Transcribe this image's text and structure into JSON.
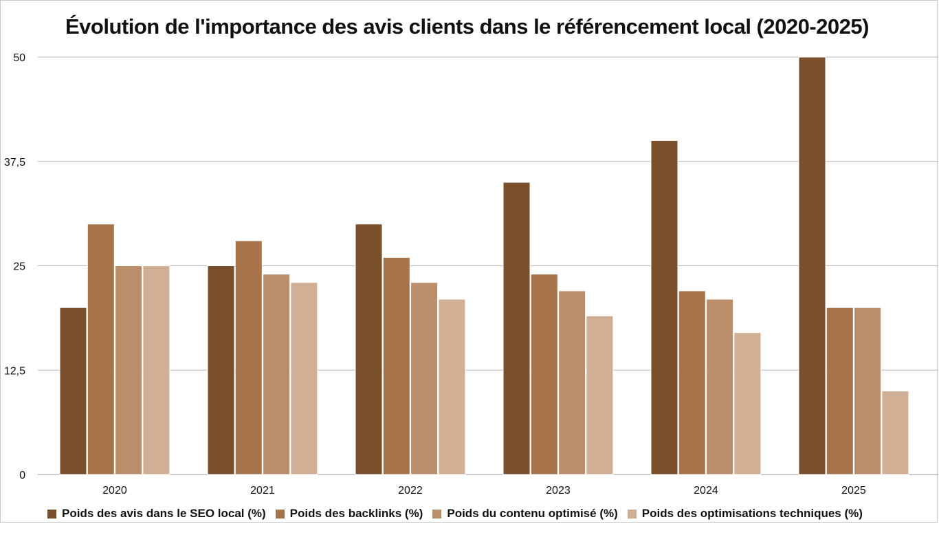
{
  "chart_data": {
    "type": "bar",
    "title": "Évolution de l'importance des avis clients dans le référencement local (2020-2025)",
    "xlabel": "",
    "ylabel": "",
    "categories": [
      "2020",
      "2021",
      "2022",
      "2023",
      "2024",
      "2025"
    ],
    "ylim": [
      0,
      50
    ],
    "yticks": [
      0,
      12.5,
      25,
      37.5,
      50
    ],
    "ytick_labels": [
      "0",
      "12,5",
      "25",
      "37,5",
      "50"
    ],
    "grid": true,
    "legend_position": "bottom",
    "series": [
      {
        "name": "Poids des avis dans le SEO local (%)",
        "color": "#7a4f2c",
        "values": [
          20,
          25,
          30,
          35,
          40,
          50
        ]
      },
      {
        "name": "Poids des backlinks (%)",
        "color": "#a6734a",
        "values": [
          30,
          28,
          26,
          24,
          22,
          20
        ]
      },
      {
        "name": "Poids du contenu optimisé (%)",
        "color": "#bb8e6b",
        "values": [
          25,
          24,
          23,
          22,
          21,
          20
        ]
      },
      {
        "name": "Poids des optimisations techniques (%)",
        "color": "#d1af95",
        "values": [
          25,
          23,
          21,
          19,
          17,
          10
        ]
      }
    ]
  }
}
